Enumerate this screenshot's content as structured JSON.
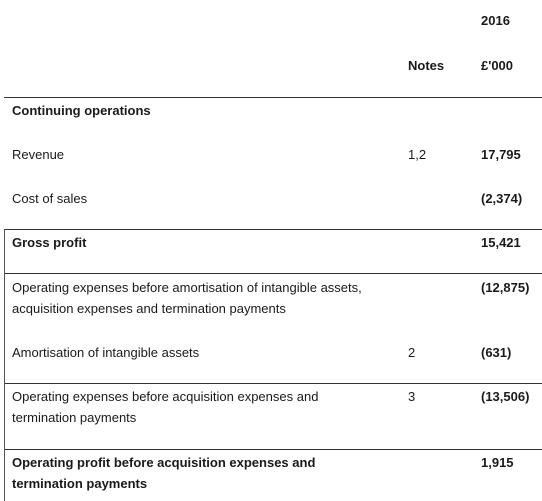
{
  "header": {
    "year": "2016",
    "notes_label": "Notes",
    "unit_label": "£'000"
  },
  "rows": [
    {
      "label": "Continuing operations",
      "note": "",
      "value": ""
    },
    {
      "label": "Revenue",
      "note": "1,2",
      "value": "17,795"
    },
    {
      "label": "Cost of sales",
      "note": "",
      "value": "(2,374)"
    },
    {
      "label": "Gross profit",
      "note": "",
      "value": "15,421"
    },
    {
      "label": "Operating expenses before amortisation of intangible assets, acquisition expenses and termination payments",
      "note": "",
      "value": "(12,875)"
    },
    {
      "label": "Amortisation of intangible assets",
      "note": "2",
      "value": "(631)"
    },
    {
      "label": "Operating expenses before acquisition expenses and termination payments",
      "note": "3",
      "value": "(13,506)"
    },
    {
      "label": "Operating profit before acquisition expenses and termination payments",
      "note": "",
      "value": "1,915"
    }
  ]
}
